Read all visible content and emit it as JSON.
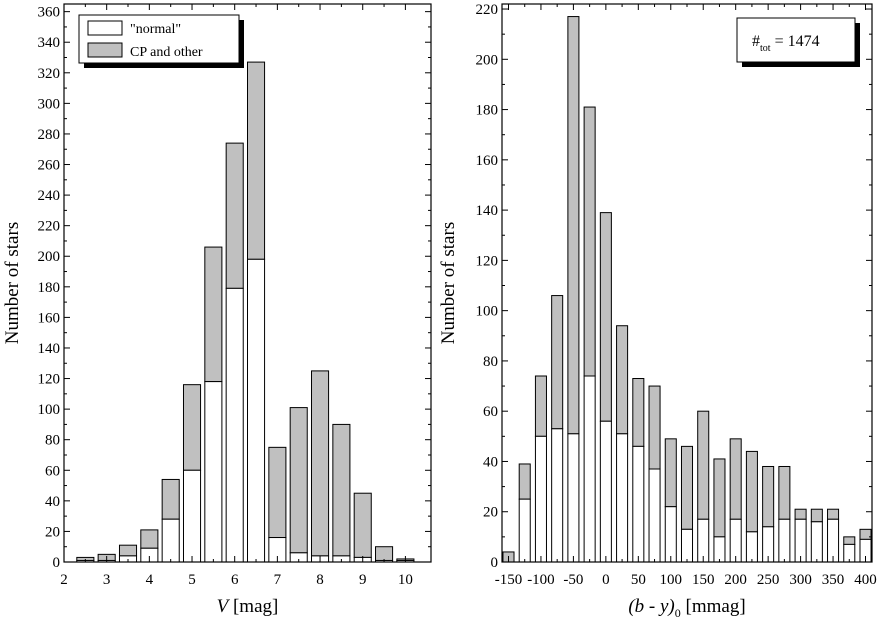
{
  "colors": {
    "normal": "#ffffff",
    "cp": "#c0c0c0",
    "stroke": "#000000"
  },
  "chart_data": [
    {
      "type": "bar",
      "stacked": true,
      "xlabel_italic": "V",
      "xlabel_rest": " [mag]",
      "ylabel": "Number of stars",
      "xlim": [
        2,
        10.6
      ],
      "ylim": [
        0,
        365
      ],
      "bar_width": 0.4,
      "x_ticks": [
        2,
        3,
        4,
        5,
        6,
        7,
        8,
        9,
        10
      ],
      "y_ticks": [
        0,
        20,
        40,
        60,
        80,
        100,
        120,
        140,
        160,
        180,
        200,
        220,
        240,
        260,
        280,
        300,
        320,
        340,
        360
      ],
      "legend": {
        "placement": "top-left",
        "normal_label": "\"normal\"",
        "cp_label": "CP and other"
      },
      "x": [
        2.5,
        3.0,
        3.5,
        4.0,
        4.5,
        5.0,
        5.5,
        6.0,
        6.5,
        7.0,
        7.5,
        8.0,
        8.5,
        9.0,
        9.5,
        10.0
      ],
      "series": [
        {
          "name": "\"normal\"",
          "values": [
            1,
            1,
            4,
            9,
            28,
            60,
            118,
            179,
            198,
            16,
            6,
            4,
            4,
            3,
            1,
            1
          ]
        },
        {
          "name": "CP and other",
          "values": [
            2,
            4,
            7,
            12,
            26,
            56,
            88,
            95,
            129,
            59,
            95,
            121,
            86,
            42,
            9,
            1
          ]
        }
      ]
    },
    {
      "type": "bar",
      "stacked": true,
      "xlabel_main": "(b - y)",
      "xlabel_sub": "0",
      "xlabel_rest": " [mmag]",
      "ylabel": "Number of stars",
      "xlim": [
        -160,
        410
      ],
      "ylim": [
        0,
        222
      ],
      "bar_width": 17,
      "x_ticks": [
        -150,
        -100,
        -50,
        0,
        50,
        100,
        150,
        200,
        250,
        300,
        350,
        400
      ],
      "x_tick_labels": [
        "-150",
        "-100",
        "-50",
        "0",
        "50",
        "100",
        "150",
        "200",
        "250",
        "300",
        "350",
        "400"
      ],
      "y_ticks": [
        0,
        20,
        40,
        60,
        80,
        100,
        120,
        140,
        160,
        180,
        200,
        220
      ],
      "annotation": {
        "prefix": "#",
        "sub": "tot",
        "value": " = 1474",
        "placement": "top-right"
      },
      "x": [
        -150,
        -125,
        -100,
        -75,
        -50,
        -25,
        0,
        25,
        50,
        75,
        100,
        125,
        150,
        175,
        200,
        225,
        250,
        275,
        300,
        325,
        350,
        375,
        400
      ],
      "series": [
        {
          "name": "\"normal\"",
          "values": [
            0,
            25,
            50,
            53,
            51,
            74,
            56,
            51,
            46,
            37,
            22,
            13,
            17,
            10,
            17,
            12,
            14,
            17,
            17,
            16,
            17,
            7,
            9
          ]
        },
        {
          "name": "CP and other",
          "values": [
            4,
            14,
            24,
            53,
            166,
            107,
            83,
            43,
            27,
            33,
            27,
            33,
            43,
            31,
            32,
            32,
            24,
            21,
            4,
            5,
            4,
            3,
            4
          ]
        }
      ]
    }
  ]
}
